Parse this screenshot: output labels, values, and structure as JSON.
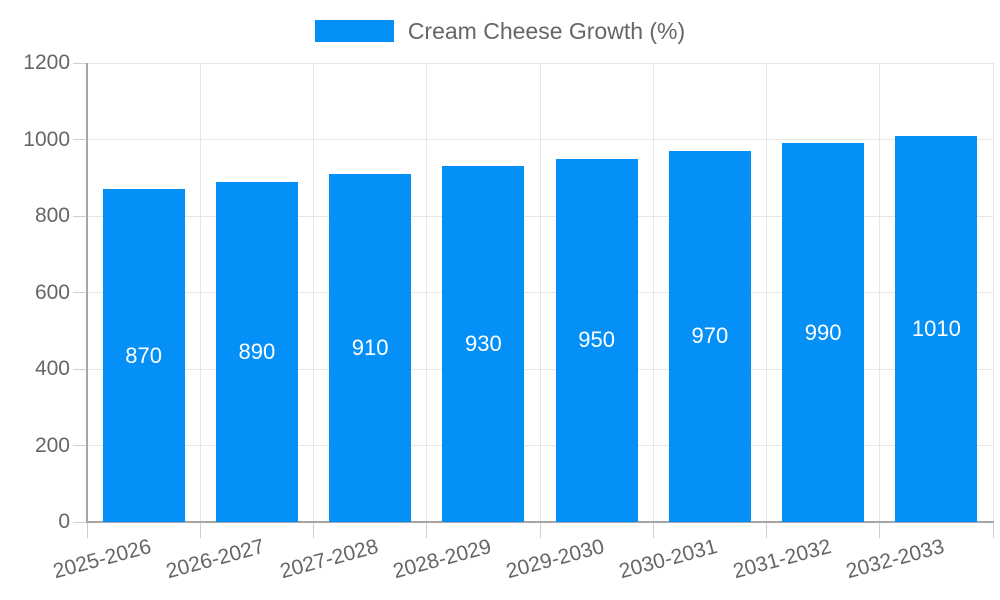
{
  "legend": {
    "label": "Cream Cheese Growth (%)"
  },
  "colors": {
    "bar": "#0590f7",
    "grid": "#e6e6e6",
    "axis": "#a6a6a6",
    "tick": "#cfcfcf",
    "text": "#666666",
    "bar_label": "#ffffff",
    "background": "#ffffff"
  },
  "chart_data": {
    "type": "bar",
    "title": "Cream Cheese Growth (%)",
    "categories": [
      "2025-2026",
      "2026-2027",
      "2027-2028",
      "2028-2029",
      "2029-2030",
      "2030-2031",
      "2031-2032",
      "2032-2033"
    ],
    "values": [
      870,
      890,
      910,
      930,
      950,
      970,
      990,
      1010
    ],
    "xlabel": "",
    "ylabel": "",
    "ylim": [
      0,
      1200
    ],
    "yticks": [
      0,
      200,
      400,
      600,
      800,
      1000,
      1200
    ],
    "grid": true,
    "legend_position": "top",
    "bar_labels_inside": true,
    "x_label_rotation_deg": -15
  }
}
